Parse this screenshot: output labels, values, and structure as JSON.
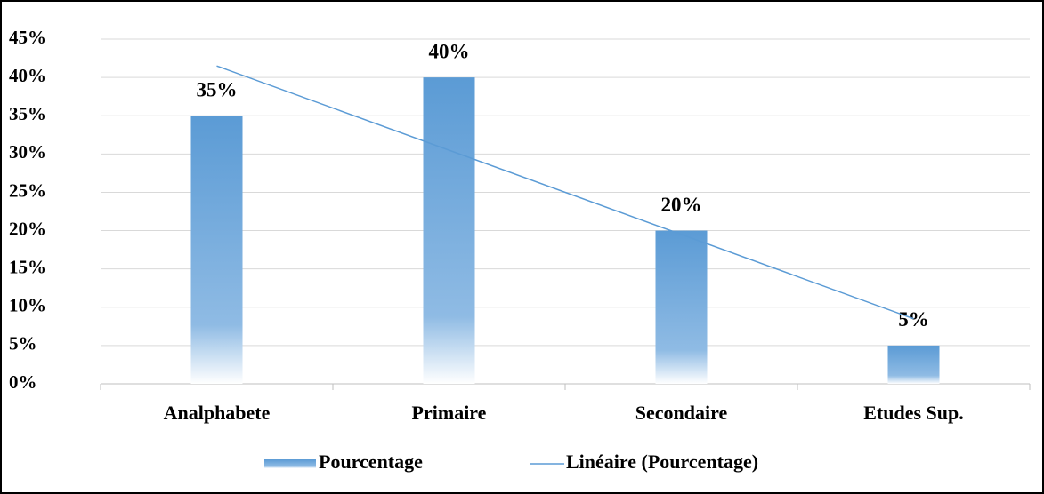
{
  "chart_data": {
    "type": "bar",
    "categories": [
      "Analphabete",
      "Primaire",
      "Secondaire",
      "Etudes Sup."
    ],
    "series": [
      {
        "name": "Pourcentage",
        "color": "#5b9bd5",
        "values": [
          35,
          40,
          20,
          5
        ],
        "value_labels": [
          "35%",
          "40%",
          "20%",
          "5%"
        ]
      }
    ],
    "trendline": {
      "name": "Linéaire (Pourcentage)",
      "kind": "linear",
      "color": "#5b9bd5"
    },
    "ylim": [
      0,
      45
    ],
    "yticks": [
      {
        "value": 0,
        "label": "0%"
      },
      {
        "value": 5,
        "label": "5%"
      },
      {
        "value": 10,
        "label": "10%"
      },
      {
        "value": 15,
        "label": "15%"
      },
      {
        "value": 20,
        "label": "20%"
      },
      {
        "value": 25,
        "label": "25%"
      },
      {
        "value": 30,
        "label": "30%"
      },
      {
        "value": 35,
        "label": "35%"
      },
      {
        "value": 40,
        "label": "40%"
      },
      {
        "value": 45,
        "label": "45%"
      }
    ],
    "grid": true,
    "legend": "bottom"
  }
}
